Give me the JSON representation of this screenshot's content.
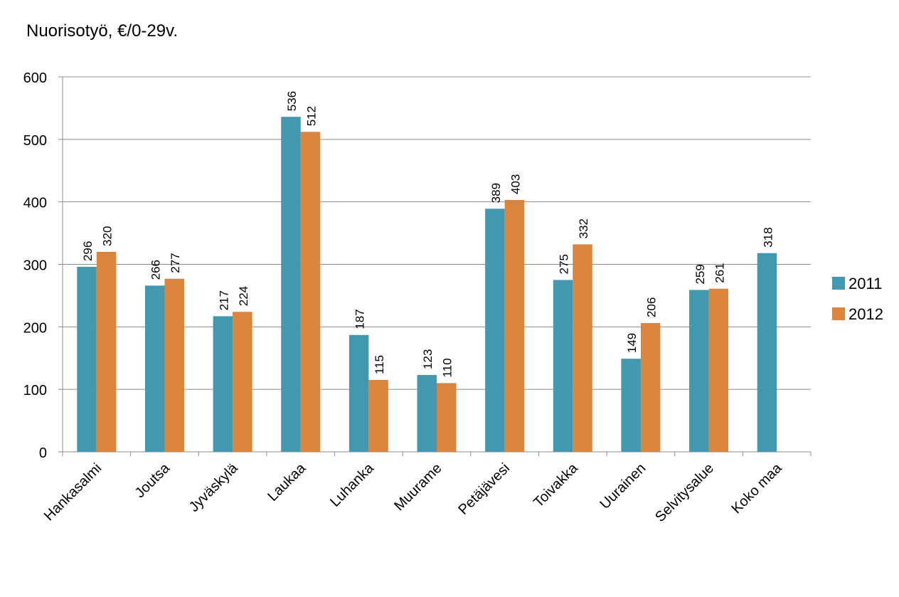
{
  "chart_data": {
    "type": "bar",
    "title": "Nuorisotyö, €/0-29v.",
    "xlabel": "",
    "ylabel": "",
    "ylim": [
      0,
      600
    ],
    "yticks": [
      0,
      100,
      200,
      300,
      400,
      500,
      600
    ],
    "grid": true,
    "legend_position": "right",
    "categories": [
      "Hankasalmi",
      "Joutsa",
      "Jyväskylä",
      "Laukaa",
      "Luhanka",
      "Muurame",
      "Petäjävesi",
      "Toivakka",
      "Uurainen",
      "Selvitysalue",
      "Koko maa"
    ],
    "series": [
      {
        "name": "2011",
        "color": "#4198B0",
        "values": [
          296,
          266,
          217,
          536,
          187,
          123,
          389,
          275,
          149,
          259,
          318
        ]
      },
      {
        "name": "2012",
        "color": "#DB843D",
        "values": [
          320,
          277,
          224,
          512,
          115,
          110,
          403,
          332,
          206,
          261,
          null
        ]
      }
    ]
  }
}
